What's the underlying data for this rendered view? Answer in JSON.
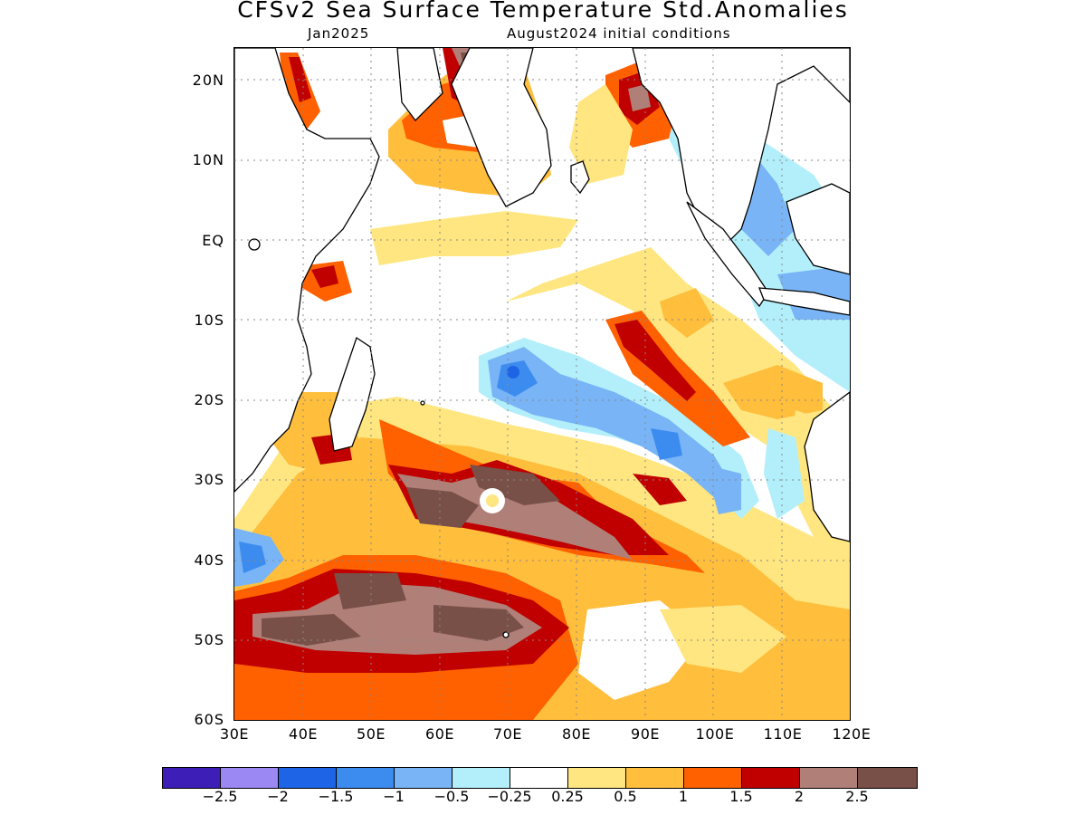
{
  "header": {
    "title": "CFSv2 Sea Surface Temperature Std.Anomalies",
    "valid_month": "Jan2025",
    "init_label": "August2024 initial conditions"
  },
  "map": {
    "region": "Indian Ocean",
    "lon_range": [
      30,
      120
    ],
    "lat_range": [
      -60,
      24
    ],
    "grid": true,
    "lat_ticks": [
      "20N",
      "10N",
      "EQ",
      "10S",
      "20S",
      "30S",
      "40S",
      "50S",
      "60S"
    ],
    "lon_ticks": [
      "30E",
      "40E",
      "50E",
      "60E",
      "70E",
      "80E",
      "90E",
      "100E",
      "110E",
      "120E"
    ]
  },
  "colorbar": {
    "colors": [
      "#3d1fb8",
      "#9b88f2",
      "#1e64e6",
      "#3c8cf0",
      "#78b4f6",
      "#b2effa",
      "#ffffff",
      "#ffe680",
      "#ffbe3c",
      "#ff6000",
      "#c00000",
      "#b08078",
      "#785048"
    ],
    "labels": [
      "−2.5",
      "−2",
      "−1.5",
      "−1",
      "−0.5",
      "−0.25",
      "0.25",
      "0.5",
      "1",
      "1.5",
      "2",
      "2.5"
    ]
  }
}
